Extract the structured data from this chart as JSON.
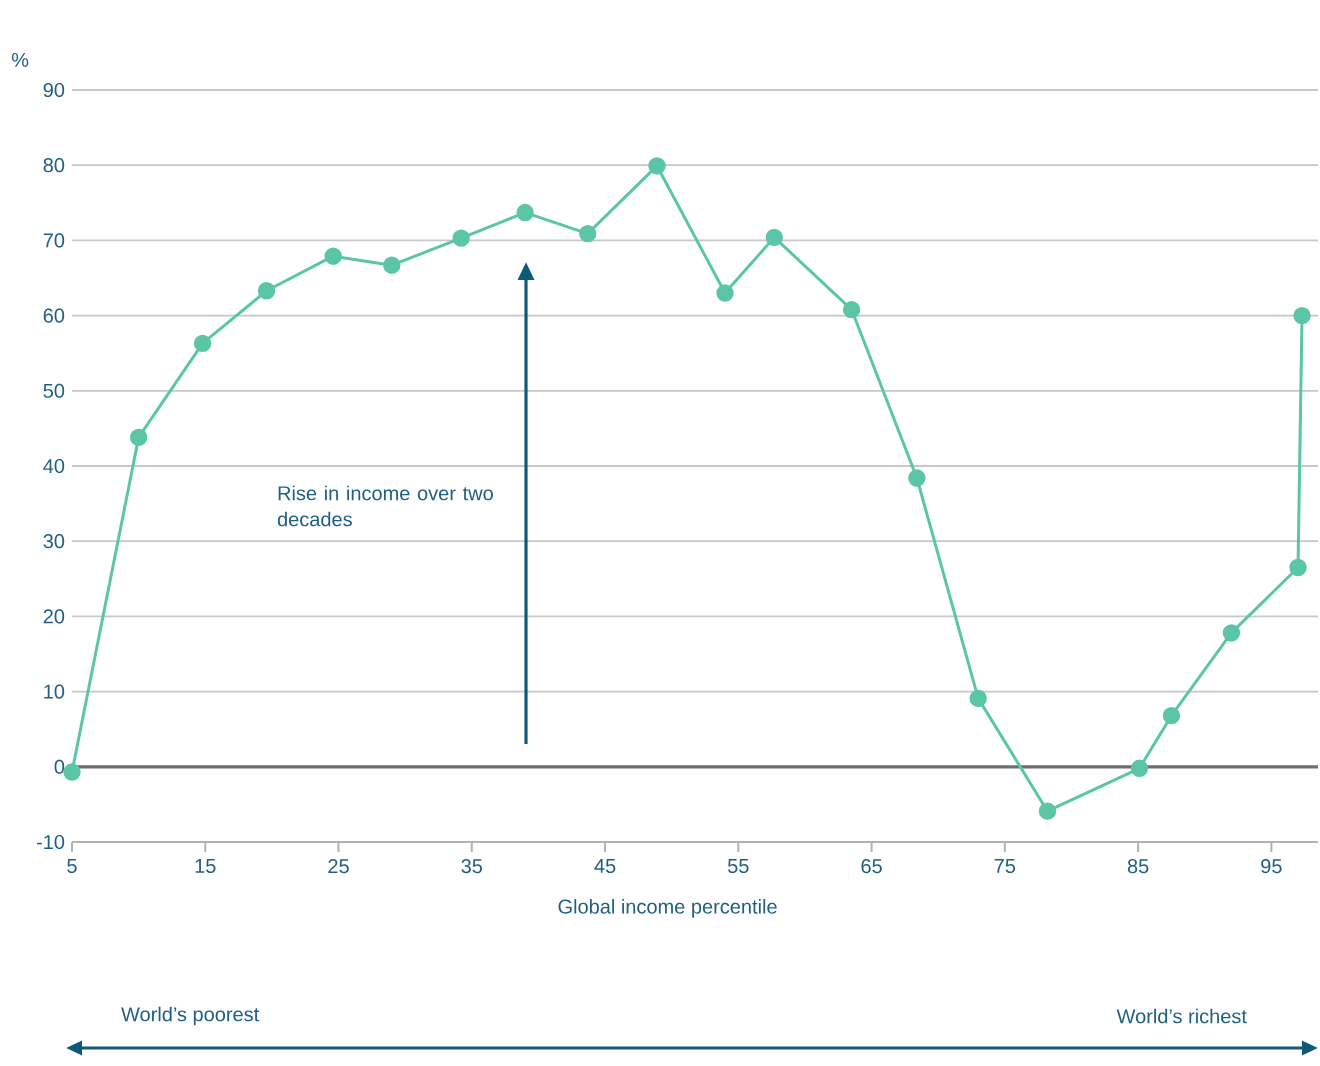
{
  "chart_data": {
    "type": "line",
    "ylabel": "%",
    "xlabel": "Global income percentile",
    "annotations": [
      "Rise in income over two decades",
      "World’s poorest",
      "World’s richest"
    ],
    "x": [
      5,
      10,
      14.8,
      19.6,
      24.6,
      29,
      34.2,
      39,
      43.7,
      48.9,
      54,
      57.7,
      63.5,
      68.4,
      73,
      78.2,
      85.1,
      87.5,
      92,
      97,
      97.3
    ],
    "series": [
      {
        "color": "#5bc5a7",
        "values": [
          -0.7,
          43.8,
          56.3,
          63.3,
          67.9,
          66.7,
          70.3,
          73.7,
          70.9,
          79.9,
          63,
          70.4,
          60.8,
          38.4,
          9.1,
          -5.9,
          -0.2,
          6.8,
          17.8,
          26.5,
          60
        ]
      }
    ],
    "xlim": [
      5,
      98.5
    ],
    "ylim": [
      -10,
      90
    ],
    "xticks": [
      5,
      15,
      25,
      35,
      45,
      55,
      65,
      75,
      85,
      95
    ],
    "yticks": [
      -10,
      0,
      10,
      20,
      30,
      40,
      50,
      60,
      70,
      80,
      90
    ],
    "ref_lines": [
      {
        "axis": "y",
        "value": 0,
        "color": "#6e6e6e"
      }
    ],
    "grid": "y",
    "marker": "circle",
    "line_style": "solid"
  }
}
